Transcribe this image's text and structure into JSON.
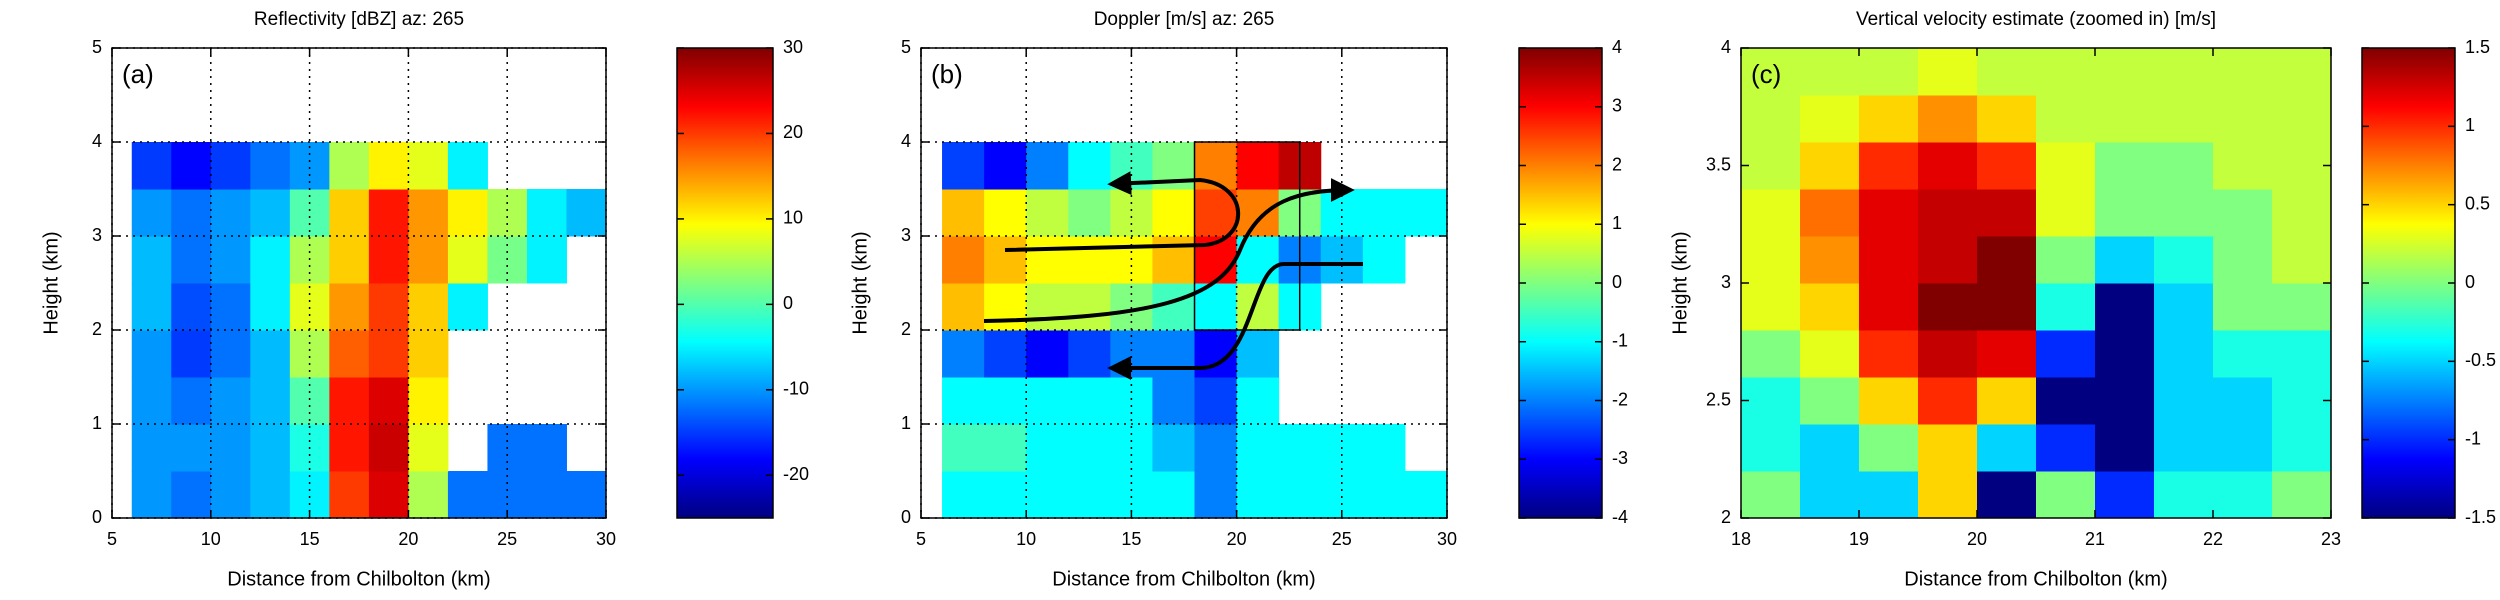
{
  "chart_data": [
    {
      "type": "heatmap",
      "title": "Reflectivity [dBZ] az: 265",
      "label": "(a)",
      "xlabel": "Distance from Chilbolton (km)",
      "ylabel": "Height (km)",
      "xlim": [
        5,
        30
      ],
      "ylim": [
        0,
        5
      ],
      "xticks": [
        5,
        10,
        15,
        20,
        25,
        30
      ],
      "yticks": [
        0,
        1,
        2,
        3,
        4,
        5
      ],
      "grid": true,
      "colormap": "jet",
      "clim": [
        -25,
        30
      ],
      "cticks": [
        -20,
        -10,
        0,
        10,
        20,
        30
      ],
      "x": [
        6,
        8,
        10,
        12,
        14,
        16,
        18,
        20,
        22,
        24,
        26,
        28,
        30
      ],
      "y": [
        0,
        0.5,
        1,
        1.5,
        2,
        2.5,
        3,
        3.5,
        4
      ],
      "values": [
        [
          -10,
          -12,
          -10,
          -8,
          -5,
          20,
          25,
          5,
          -12,
          -12,
          -12,
          -12
        ],
        [
          -10,
          -10,
          -10,
          -8,
          -3,
          22,
          26,
          8,
          null,
          -12,
          -12,
          null
        ],
        [
          -10,
          -12,
          -10,
          -8,
          0,
          22,
          25,
          10,
          null,
          null,
          null,
          null
        ],
        [
          -10,
          -15,
          -12,
          -8,
          5,
          18,
          20,
          12,
          null,
          null,
          null,
          null
        ],
        [
          -8,
          -14,
          -12,
          -5,
          8,
          15,
          20,
          12,
          -5,
          null,
          null,
          null
        ],
        [
          -8,
          -12,
          -10,
          -5,
          5,
          12,
          22,
          15,
          8,
          2,
          -5,
          null
        ],
        [
          -10,
          -12,
          -10,
          -8,
          0,
          12,
          22,
          15,
          10,
          5,
          -5,
          -8
        ],
        [
          -15,
          -18,
          -15,
          -12,
          -10,
          5,
          10,
          8,
          -5,
          null,
          null,
          null
        ]
      ]
    },
    {
      "type": "heatmap",
      "title": "Doppler [m/s] az: 265",
      "label": "(b)",
      "xlabel": "Distance from Chilbolton (km)",
      "ylabel": "Height (km)",
      "xlim": [
        5,
        30
      ],
      "ylim": [
        0,
        5
      ],
      "xticks": [
        5,
        10,
        15,
        20,
        25,
        30
      ],
      "yticks": [
        0,
        1,
        2,
        3,
        4,
        5
      ],
      "grid": true,
      "colormap": "jet",
      "clim": [
        -4,
        4
      ],
      "cticks": [
        -4,
        -3,
        -2,
        -1,
        0,
        1,
        2,
        3,
        4
      ],
      "box": {
        "x": [
          18,
          23
        ],
        "y": [
          2,
          4
        ]
      },
      "x": [
        6,
        8,
        10,
        12,
        14,
        16,
        18,
        20,
        22,
        24,
        26,
        28,
        30
      ],
      "y": [
        0,
        0.5,
        1,
        1.5,
        2,
        2.5,
        3,
        3.5,
        4
      ],
      "values": [
        [
          -1,
          -1,
          -1,
          -1,
          -1,
          -1,
          -2,
          -1,
          -1,
          -1,
          -1,
          -1
        ],
        [
          -0.5,
          -0.5,
          -1,
          -1,
          -1,
          -1.5,
          -2,
          -1,
          -1,
          -1,
          -1,
          null
        ],
        [
          -1,
          -1,
          -1,
          -1,
          -1,
          -2,
          -2.5,
          -1,
          null,
          null,
          null,
          null
        ],
        [
          -2,
          -2.5,
          -3,
          -2.5,
          -2,
          -2,
          -3,
          -1.5,
          null,
          null,
          null,
          null
        ],
        [
          1.5,
          1,
          0.5,
          0.5,
          0,
          -0.5,
          -1,
          0.5,
          -1,
          null,
          null,
          null
        ],
        [
          2,
          1.5,
          1,
          1,
          1,
          1.5,
          3,
          -1,
          -2,
          -1.5,
          -1,
          null
        ],
        [
          1.5,
          1,
          0.5,
          0,
          0.5,
          1,
          2.5,
          2,
          0,
          -1,
          -1,
          -1
        ],
        [
          -2.5,
          -3,
          -2,
          -1,
          -0.5,
          0,
          2,
          3,
          3.5,
          null,
          null,
          null
        ]
      ]
    },
    {
      "type": "heatmap",
      "title": "Vertical velocity estimate (zoomed in) [m/s]",
      "label": "(c)",
      "xlabel": "Distance from Chilbolton (km)",
      "ylabel": "Height (km)",
      "xlim": [
        18,
        23
      ],
      "ylim": [
        2,
        4
      ],
      "xticks": [
        18,
        19,
        20,
        21,
        22,
        23
      ],
      "yticks": [
        2,
        2.5,
        3,
        3.5,
        4
      ],
      "grid": false,
      "colormap": "jet",
      "clim": [
        -1.5,
        1.5
      ],
      "cticks": [
        -1.5,
        -1,
        -0.5,
        0,
        0.5,
        1,
        1.5
      ],
      "x": [
        18,
        18.5,
        19,
        19.5,
        20,
        20.5,
        21,
        21.5,
        22,
        22.5,
        23
      ],
      "y": [
        2,
        2.2,
        2.4,
        2.6,
        2.8,
        3,
        3.2,
        3.4,
        3.6,
        3.8,
        4
      ],
      "values": [
        [
          0,
          -0.5,
          -0.5,
          0.5,
          -1.5,
          0,
          -1,
          -0.3,
          -0.3,
          0
        ],
        [
          -0.3,
          -0.5,
          0,
          0.5,
          -0.5,
          -1,
          -1.5,
          -0.5,
          -0.5,
          -0.3
        ],
        [
          -0.3,
          0,
          0.5,
          1,
          0.5,
          -1.5,
          -1.5,
          -0.5,
          -0.5,
          -0.3
        ],
        [
          0,
          0.3,
          1,
          1.3,
          1.2,
          -1,
          -1.5,
          -0.5,
          -0.3,
          -0.3
        ],
        [
          0.3,
          0.5,
          1.2,
          1.5,
          1.5,
          -0.3,
          -1.5,
          -0.5,
          0,
          0
        ],
        [
          0.3,
          0.7,
          1.2,
          1.3,
          1.5,
          0,
          -0.5,
          -0.3,
          0,
          0.2
        ],
        [
          0.3,
          0.8,
          1.2,
          1.3,
          1.3,
          0.3,
          0,
          0,
          0,
          0.2
        ],
        [
          0.2,
          0.5,
          1,
          1.2,
          1,
          0.3,
          0,
          0,
          0.2,
          0.2
        ],
        [
          0.2,
          0.3,
          0.5,
          0.7,
          0.5,
          0.2,
          0.2,
          0.2,
          0.2,
          0.2
        ],
        [
          0.2,
          0.2,
          0.2,
          0.3,
          0.2,
          0.2,
          0.2,
          0.2,
          0.2,
          0.2
        ]
      ]
    }
  ]
}
